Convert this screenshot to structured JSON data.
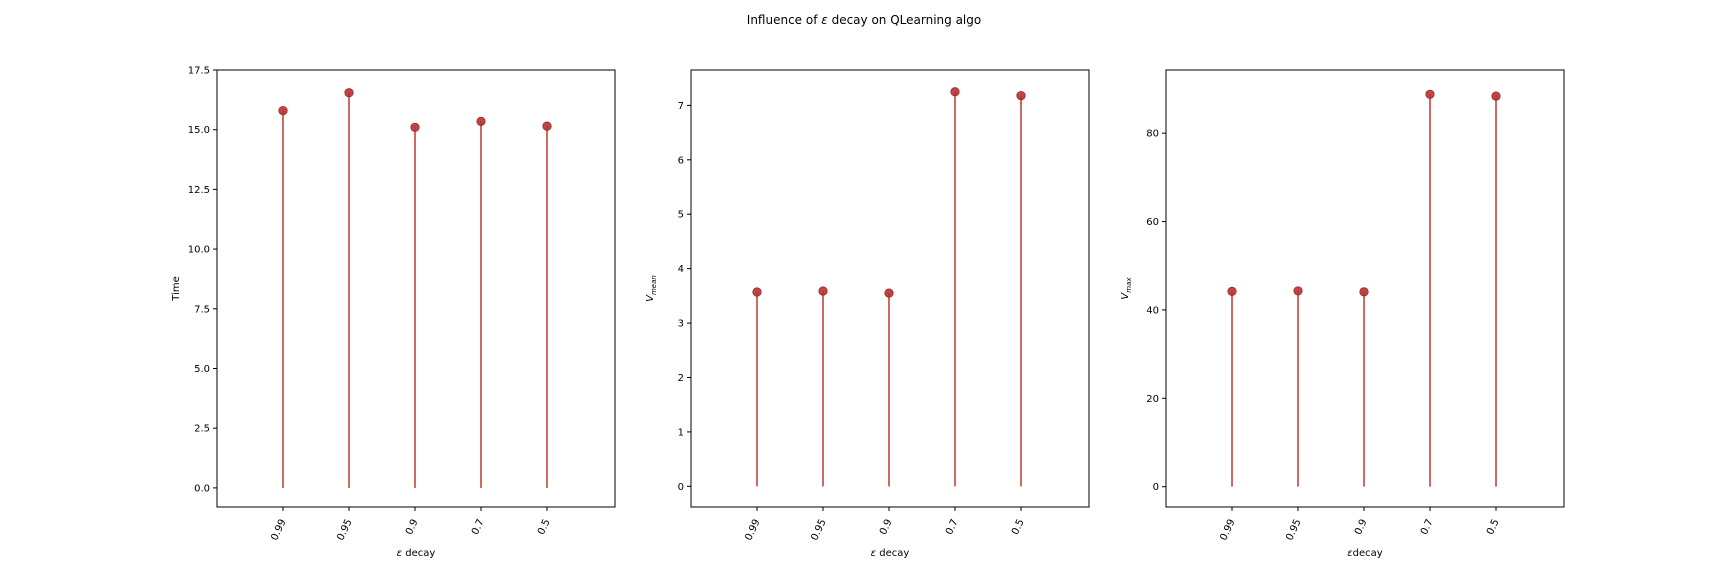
{
  "figure": {
    "title_prefix": "Influence of ",
    "title_symbol": "ε",
    "title_suffix": " decay on QLearning algo"
  },
  "style": {
    "stem_color": "#c0392b",
    "marker_color": "#b83232",
    "marker_edge": "#a02828"
  },
  "chart_data": [
    {
      "type": "stem",
      "categories": [
        "0.99",
        "0.95",
        "0.9",
        "0.7",
        "0.5"
      ],
      "values": [
        15.8,
        16.55,
        15.1,
        15.35,
        15.15
      ],
      "xlabel_symbol": "ε",
      "xlabel_text": " decay",
      "ylabel": "Time",
      "ylabel_sub": "",
      "ylim": [
        -0.8,
        17.5
      ],
      "yticks": [
        0.0,
        2.5,
        5.0,
        7.5,
        10.0,
        12.5,
        15.0,
        17.5
      ],
      "ytick_labels": [
        "0.0",
        "2.5",
        "5.0",
        "7.5",
        "10.0",
        "12.5",
        "15.0",
        "17.5"
      ],
      "grid": false
    },
    {
      "type": "stem",
      "categories": [
        "0.99",
        "0.95",
        "0.9",
        "0.7",
        "0.5"
      ],
      "values": [
        3.57,
        3.59,
        3.55,
        7.25,
        7.18
      ],
      "xlabel_symbol": "ε",
      "xlabel_text": " decay",
      "ylabel": "V",
      "ylabel_sub": "mean",
      "ylim": [
        -0.38,
        7.65
      ],
      "yticks": [
        0,
        1,
        2,
        3,
        4,
        5,
        6,
        7
      ],
      "ytick_labels": [
        "0",
        "1",
        "2",
        "3",
        "4",
        "5",
        "6",
        "7"
      ],
      "grid": false
    },
    {
      "type": "stem",
      "categories": [
        "0.99",
        "0.95",
        "0.9",
        "0.7",
        "0.5"
      ],
      "values": [
        44.2,
        44.3,
        44.1,
        88.8,
        88.4
      ],
      "xlabel_symbol": "ε",
      "xlabel_text": "decay",
      "ylabel": "V",
      "ylabel_sub": "max",
      "ylim": [
        -4.6,
        94.3
      ],
      "yticks": [
        0,
        20,
        40,
        60,
        80
      ],
      "ytick_labels": [
        "0",
        "20",
        "40",
        "60",
        "80"
      ],
      "grid": false
    }
  ]
}
